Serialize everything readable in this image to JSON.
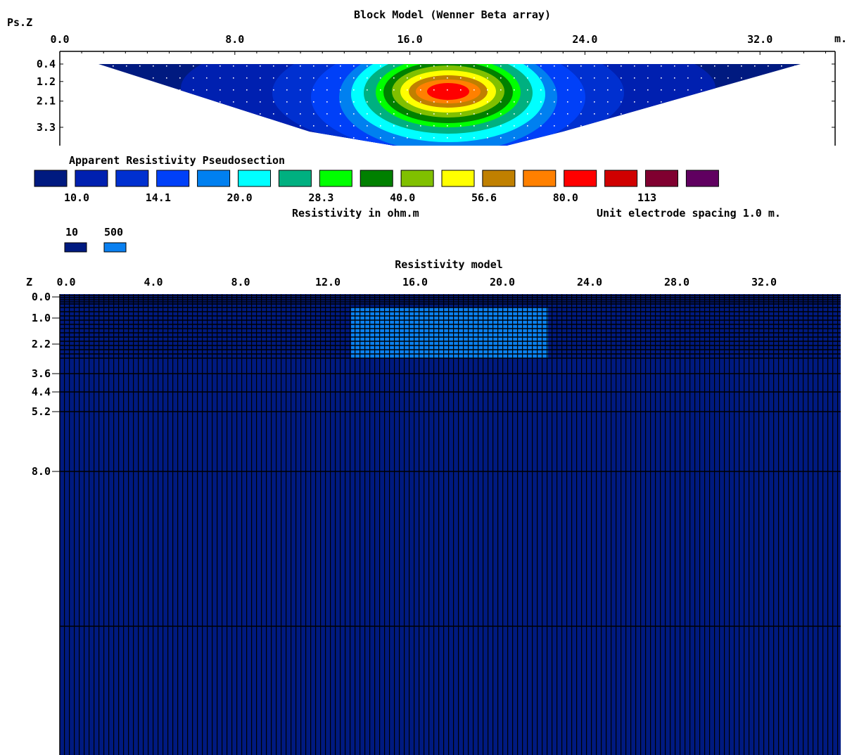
{
  "title": "Block Model (Wenner Beta array)",
  "pseudosection": {
    "depth_axis_label": "Ps.Z",
    "unit_label": "m.",
    "x_ticks": [
      "0.0",
      "8.0",
      "16.0",
      "24.0",
      "32.0"
    ],
    "depth_ticks": [
      "0.4",
      "1.2",
      "2.1",
      "3.3"
    ],
    "caption": "Apparent Resistivity Pseudosection"
  },
  "colorbar": {
    "colors": [
      "#001a80",
      "#0020b0",
      "#0030d0",
      "#0040f8",
      "#0080f0",
      "#00ffff",
      "#00b080",
      "#00ff00",
      "#008000",
      "#80c000",
      "#ffff00",
      "#c08000",
      "#ff8000",
      "#ff0000",
      "#d00000",
      "#800030",
      "#600060"
    ],
    "labels": [
      "10.0",
      "14.1",
      "20.0",
      "28.3",
      "40.0",
      "56.6",
      "80.0",
      "113"
    ],
    "units_label": "Resistivity in ohm.m",
    "spacing_label": "Unit electrode spacing 1.0 m."
  },
  "model_legend": {
    "items": [
      {
        "label": "10",
        "color": "#001a80"
      },
      {
        "label": "500",
        "color": "#0a80f0"
      }
    ]
  },
  "model": {
    "title": "Resistivity model",
    "z_label": "Z",
    "x_ticks": [
      "0.0",
      "4.0",
      "8.0",
      "12.0",
      "16.0",
      "20.0",
      "24.0",
      "28.0",
      "32.0"
    ],
    "depth_ticks": [
      "0.0",
      "1.0",
      "2.2",
      "3.6",
      "4.4",
      "5.2",
      "8.0"
    ]
  },
  "chart_data": {
    "type": "heatmap",
    "title": "Block Model (Wenner Beta array)",
    "panels": [
      {
        "name": "Apparent Resistivity Pseudosection",
        "xlabel": "m.",
        "ylabel": "Ps.Z",
        "xlim": [
          0,
          35
        ],
        "y_ticks": [
          0.4,
          1.2,
          2.1,
          3.3
        ],
        "peak_x": 17.5,
        "peak_depth": 1.7,
        "peak_resistivity": 113,
        "background_resistivity": 10.0,
        "contour_levels": [
          10.0,
          14.1,
          20.0,
          28.3,
          40.0,
          56.6,
          80.0,
          113
        ]
      },
      {
        "name": "Resistivity model",
        "xlabel": "m.",
        "ylabel": "Z",
        "xlim": [
          0,
          35
        ],
        "y_ticks": [
          0.0,
          1.0,
          2.2,
          3.6,
          4.4,
          5.2,
          8.0
        ],
        "background_resistivity": 10,
        "block": {
          "resistivity": 500,
          "x_range": [
            13.0,
            22.0
          ],
          "depth_range": [
            0.5,
            2.9
          ]
        }
      }
    ],
    "units": "ohm.m",
    "electrode_spacing": 1.0
  }
}
